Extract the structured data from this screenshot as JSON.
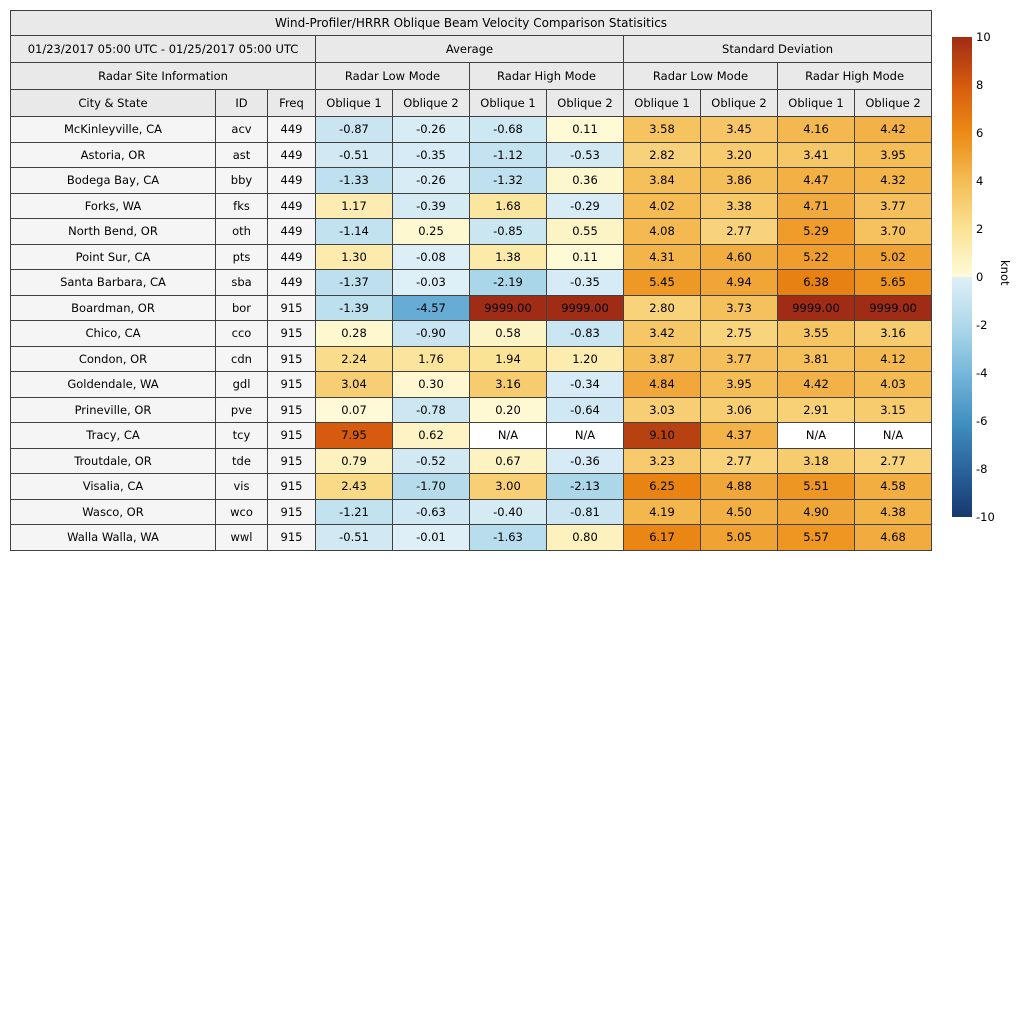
{
  "chart_data": {
    "type": "table",
    "title": "Wind-Profiler/HRRR Oblique Beam Velocity Comparison Statisitics",
    "date_range": "01/23/2017 05:00 UTC - 01/25/2017 05:00 UTC",
    "group_headers": {
      "average": "Average",
      "std_dev": "Standard Deviation"
    },
    "site_info_header": "Radar Site Information",
    "mode_headers": [
      "Radar Low Mode",
      "Radar High Mode",
      "Radar Low Mode",
      "Radar High Mode"
    ],
    "col_headers": [
      "City & State",
      "ID",
      "Freq",
      "Oblique 1",
      "Oblique 2",
      "Oblique 1",
      "Oblique 2",
      "Oblique 1",
      "Oblique 2",
      "Oblique 1",
      "Oblique 2"
    ],
    "rows": [
      {
        "city": "McKinleyville, CA",
        "id": "acv",
        "freq": "449",
        "values": [
          "-0.87",
          "-0.26",
          "-0.68",
          "0.11",
          "3.58",
          "3.45",
          "4.16",
          "4.42"
        ]
      },
      {
        "city": "Astoria, OR",
        "id": "ast",
        "freq": "449",
        "values": [
          "-0.51",
          "-0.35",
          "-1.12",
          "-0.53",
          "2.82",
          "3.20",
          "3.41",
          "3.95"
        ]
      },
      {
        "city": "Bodega Bay, CA",
        "id": "bby",
        "freq": "449",
        "values": [
          "-1.33",
          "-0.26",
          "-1.32",
          "0.36",
          "3.84",
          "3.86",
          "4.47",
          "4.32"
        ]
      },
      {
        "city": "Forks, WA",
        "id": "fks",
        "freq": "449",
        "values": [
          "1.17",
          "-0.39",
          "1.68",
          "-0.29",
          "4.02",
          "3.38",
          "4.71",
          "3.77"
        ]
      },
      {
        "city": "North Bend, OR",
        "id": "oth",
        "freq": "449",
        "values": [
          "-1.14",
          "0.25",
          "-0.85",
          "0.55",
          "4.08",
          "2.77",
          "5.29",
          "3.70"
        ]
      },
      {
        "city": "Point Sur, CA",
        "id": "pts",
        "freq": "449",
        "values": [
          "1.30",
          "-0.08",
          "1.38",
          "0.11",
          "4.31",
          "4.60",
          "5.22",
          "5.02"
        ]
      },
      {
        "city": "Santa Barbara, CA",
        "id": "sba",
        "freq": "449",
        "values": [
          "-1.37",
          "-0.03",
          "-2.19",
          "-0.35",
          "5.45",
          "4.94",
          "6.38",
          "5.65"
        ]
      },
      {
        "city": "Boardman, OR",
        "id": "bor",
        "freq": "915",
        "values": [
          "-1.39",
          "-4.57",
          "9999.00",
          "9999.00",
          "2.80",
          "3.73",
          "9999.00",
          "9999.00"
        ]
      },
      {
        "city": "Chico, CA",
        "id": "cco",
        "freq": "915",
        "values": [
          "0.28",
          "-0.90",
          "0.58",
          "-0.83",
          "3.42",
          "2.75",
          "3.55",
          "3.16"
        ]
      },
      {
        "city": "Condon, OR",
        "id": "cdn",
        "freq": "915",
        "values": [
          "2.24",
          "1.76",
          "1.94",
          "1.20",
          "3.87",
          "3.77",
          "3.81",
          "4.12"
        ]
      },
      {
        "city": "Goldendale, WA",
        "id": "gdl",
        "freq": "915",
        "values": [
          "3.04",
          "0.30",
          "3.16",
          "-0.34",
          "4.84",
          "3.95",
          "4.42",
          "4.03"
        ]
      },
      {
        "city": "Prineville, OR",
        "id": "pve",
        "freq": "915",
        "values": [
          "0.07",
          "-0.78",
          "0.20",
          "-0.64",
          "3.03",
          "3.06",
          "2.91",
          "3.15"
        ]
      },
      {
        "city": "Tracy, CA",
        "id": "tcy",
        "freq": "915",
        "values": [
          "7.95",
          "0.62",
          "N/A",
          "N/A",
          "9.10",
          "4.37",
          "N/A",
          "N/A"
        ]
      },
      {
        "city": "Troutdale, OR",
        "id": "tde",
        "freq": "915",
        "values": [
          "0.79",
          "-0.52",
          "0.67",
          "-0.36",
          "3.23",
          "2.77",
          "3.18",
          "2.77"
        ]
      },
      {
        "city": "Visalia, CA",
        "id": "vis",
        "freq": "915",
        "values": [
          "2.43",
          "-1.70",
          "3.00",
          "-2.13",
          "6.25",
          "4.88",
          "5.51",
          "4.58"
        ]
      },
      {
        "city": "Wasco, OR",
        "id": "wco",
        "freq": "915",
        "values": [
          "-1.21",
          "-0.63",
          "-0.40",
          "-0.81",
          "4.19",
          "4.50",
          "4.90",
          "4.38"
        ]
      },
      {
        "city": "Walla Walla, WA",
        "id": "wwl",
        "freq": "915",
        "values": [
          "-0.51",
          "-0.01",
          "-1.63",
          "0.80",
          "6.17",
          "5.05",
          "5.57",
          "4.68"
        ]
      }
    ],
    "colorbar": {
      "label": "knot",
      "min": -10,
      "max": 10,
      "ticks": [
        "10",
        "8",
        "6",
        "4",
        "2",
        "0",
        "-2",
        "-4",
        "-6",
        "-8",
        "-10"
      ],
      "positive_stops": [
        "#FEFBD9",
        "#FBE294",
        "#F4BC54",
        "#EC8A14",
        "#D65A0E",
        "#A02C15"
      ],
      "negative_stops": [
        "#DEEFF7",
        "#AFD9EA",
        "#76B7DB",
        "#4390C1",
        "#2A649D",
        "#17386E"
      ],
      "na_color": "#FFFFFF"
    },
    "colors": {
      "header_bg": "#E9E9E9",
      "site_cell_bg": "#F5F5F5",
      "grid_border": "#404040",
      "text": "#000000"
    }
  }
}
